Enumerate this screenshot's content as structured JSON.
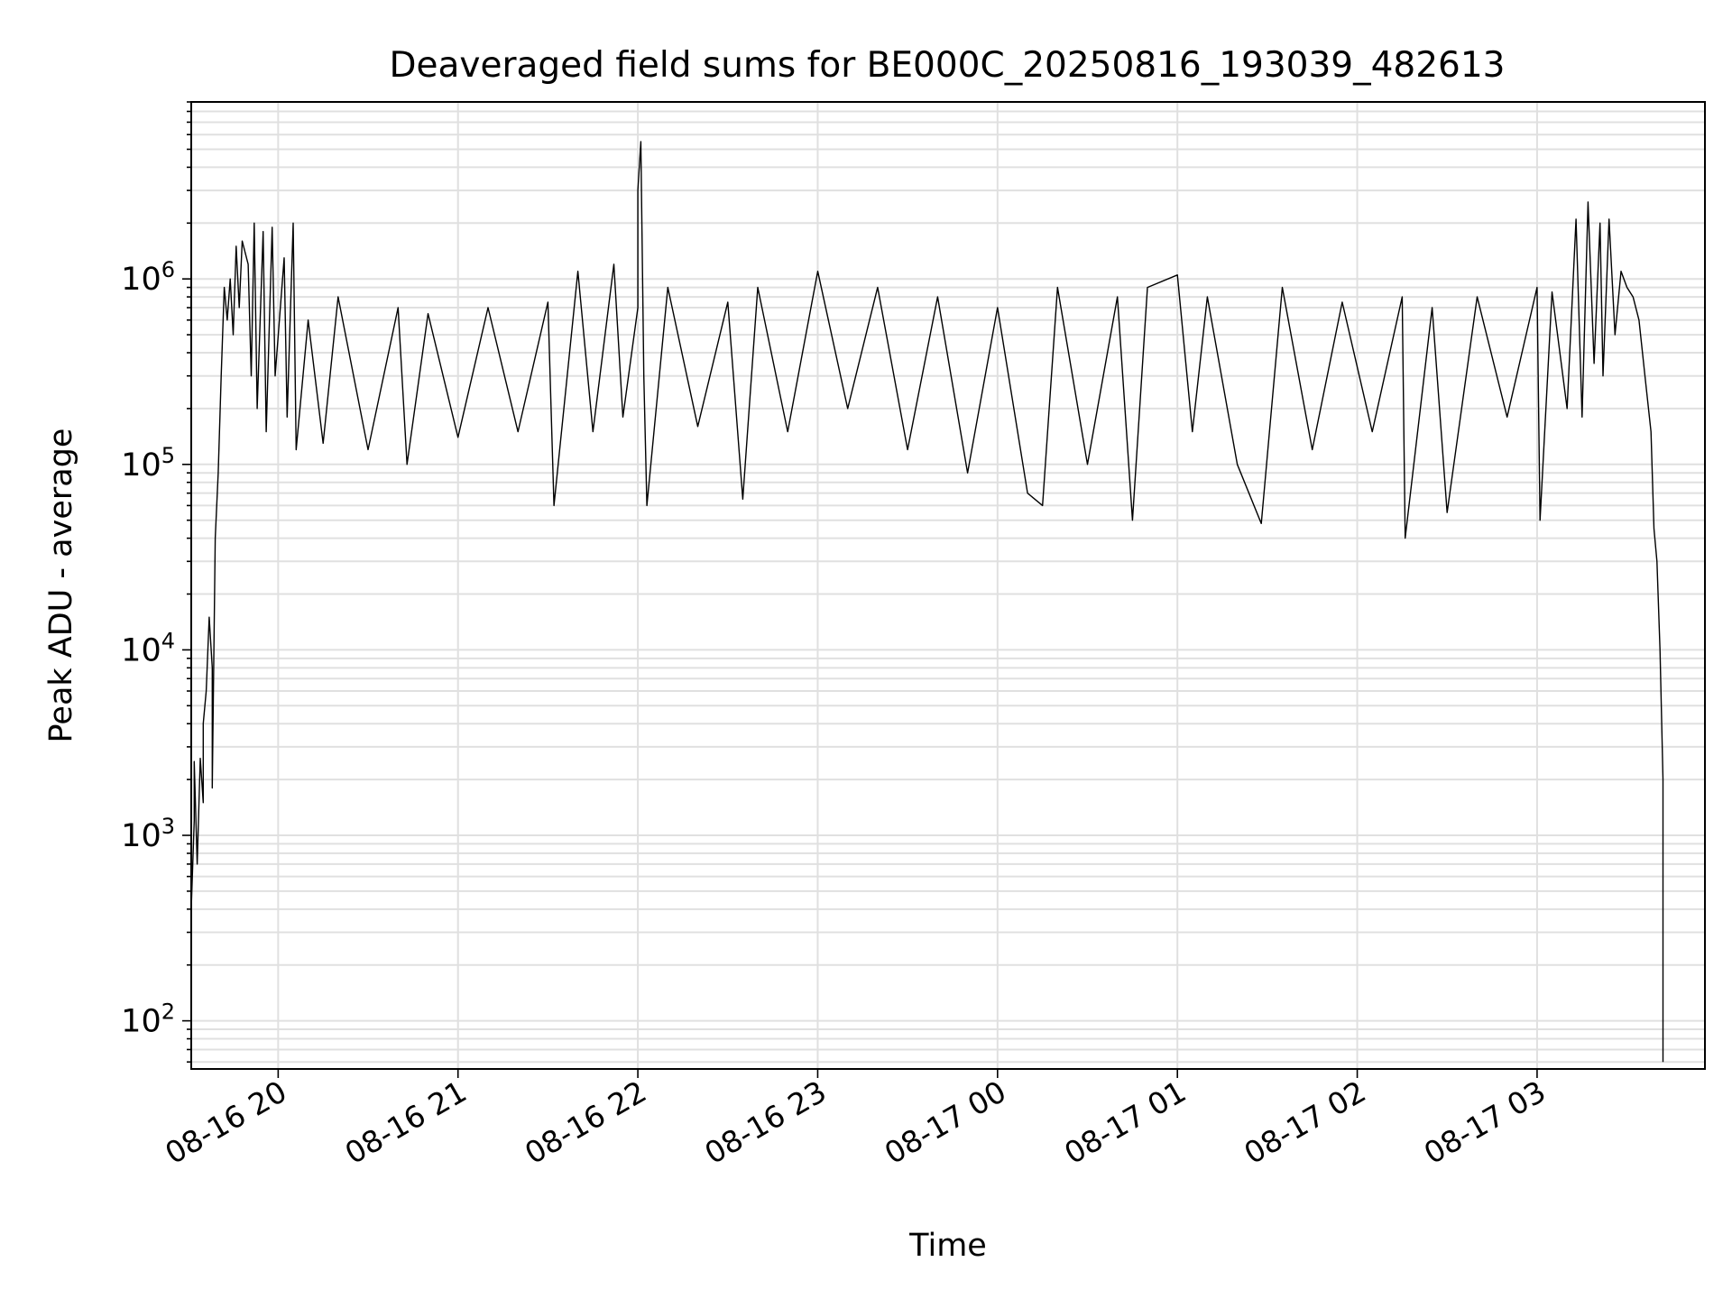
{
  "chart_data": {
    "type": "line",
    "title": "Deaveraged field sums for BE000C_20250816_193039_482613",
    "xlabel": "Time",
    "ylabel": "Peak ADU - average",
    "yscale": "log",
    "grid": true,
    "line_color": "#000000",
    "grid_color": "#e0e0e0",
    "xlim": [
      "2025-08-16 19:31",
      "2025-08-17 03:56"
    ],
    "ylim": [
      55,
      9000000
    ],
    "xticks": [
      {
        "t": "2025-08-16 20:00",
        "label": "08-16 20"
      },
      {
        "t": "2025-08-16 21:00",
        "label": "08-16 21"
      },
      {
        "t": "2025-08-16 22:00",
        "label": "08-16 22"
      },
      {
        "t": "2025-08-16 23:00",
        "label": "08-16 23"
      },
      {
        "t": "2025-08-17 00:00",
        "label": "08-17 00"
      },
      {
        "t": "2025-08-17 01:00",
        "label": "08-17 01"
      },
      {
        "t": "2025-08-17 02:00",
        "label": "08-17 02"
      },
      {
        "t": "2025-08-17 03:00",
        "label": "08-17 03"
      }
    ],
    "yticks": [
      {
        "value": 100,
        "base": "10",
        "exp": "2"
      },
      {
        "value": 1000,
        "base": "10",
        "exp": "3"
      },
      {
        "value": 10000,
        "base": "10",
        "exp": "4"
      },
      {
        "value": 100000,
        "base": "10",
        "exp": "5"
      },
      {
        "value": 1000000,
        "base": "10",
        "exp": "6"
      }
    ],
    "series": [
      {
        "points": [
          [
            "2025-08-16 19:31",
            60
          ],
          [
            "2025-08-16 19:31",
            400
          ],
          [
            "2025-08-16 19:32",
            1200
          ],
          [
            "2025-08-16 19:32",
            2500
          ],
          [
            "2025-08-16 19:33",
            700
          ],
          [
            "2025-08-16 19:34",
            2600
          ],
          [
            "2025-08-16 19:35",
            1500
          ],
          [
            "2025-08-16 19:35",
            4000
          ],
          [
            "2025-08-16 19:36",
            6000
          ],
          [
            "2025-08-16 19:37",
            15000
          ],
          [
            "2025-08-16 19:38",
            8000
          ],
          [
            "2025-08-16 19:38",
            1800
          ],
          [
            "2025-08-16 19:39",
            40000
          ],
          [
            "2025-08-16 19:40",
            90000
          ],
          [
            "2025-08-16 19:41",
            300000
          ],
          [
            "2025-08-16 19:42",
            900000
          ],
          [
            "2025-08-16 19:43",
            600000
          ],
          [
            "2025-08-16 19:44",
            1000000
          ],
          [
            "2025-08-16 19:45",
            500000
          ],
          [
            "2025-08-16 19:46",
            1500000
          ],
          [
            "2025-08-16 19:47",
            700000
          ],
          [
            "2025-08-16 19:48",
            1600000
          ],
          [
            "2025-08-16 19:50",
            1200000
          ],
          [
            "2025-08-16 19:51",
            300000
          ],
          [
            "2025-08-16 19:52",
            2000000
          ],
          [
            "2025-08-16 19:53",
            200000
          ],
          [
            "2025-08-16 19:55",
            1800000
          ],
          [
            "2025-08-16 19:56",
            150000
          ],
          [
            "2025-08-16 19:58",
            1900000
          ],
          [
            "2025-08-16 19:59",
            300000
          ],
          [
            "2025-08-16 20:02",
            1300000
          ],
          [
            "2025-08-16 20:03",
            180000
          ],
          [
            "2025-08-16 20:05",
            2000000
          ],
          [
            "2025-08-16 20:06",
            120000
          ],
          [
            "2025-08-16 20:10",
            600000
          ],
          [
            "2025-08-16 20:15",
            130000
          ],
          [
            "2025-08-16 20:20",
            800000
          ],
          [
            "2025-08-16 20:30",
            120000
          ],
          [
            "2025-08-16 20:40",
            700000
          ],
          [
            "2025-08-16 20:43",
            100000
          ],
          [
            "2025-08-16 20:50",
            650000
          ],
          [
            "2025-08-16 21:00",
            140000
          ],
          [
            "2025-08-16 21:10",
            700000
          ],
          [
            "2025-08-16 21:20",
            150000
          ],
          [
            "2025-08-16 21:30",
            750000
          ],
          [
            "2025-08-16 21:32",
            60000
          ],
          [
            "2025-08-16 21:40",
            1100000
          ],
          [
            "2025-08-16 21:45",
            150000
          ],
          [
            "2025-08-16 21:52",
            1200000
          ],
          [
            "2025-08-16 21:55",
            180000
          ],
          [
            "2025-08-16 22:00",
            700000
          ],
          [
            "2025-08-16 22:00",
            3000000
          ],
          [
            "2025-08-16 22:01",
            5500000
          ],
          [
            "2025-08-16 22:02",
            300000
          ],
          [
            "2025-08-16 22:03",
            60000
          ],
          [
            "2025-08-16 22:10",
            900000
          ],
          [
            "2025-08-16 22:20",
            160000
          ],
          [
            "2025-08-16 22:30",
            750000
          ],
          [
            "2025-08-16 22:35",
            65000
          ],
          [
            "2025-08-16 22:40",
            900000
          ],
          [
            "2025-08-16 22:50",
            150000
          ],
          [
            "2025-08-16 23:00",
            1100000
          ],
          [
            "2025-08-16 23:10",
            200000
          ],
          [
            "2025-08-16 23:20",
            900000
          ],
          [
            "2025-08-16 23:30",
            120000
          ],
          [
            "2025-08-16 23:40",
            800000
          ],
          [
            "2025-08-16 23:50",
            90000
          ],
          [
            "2025-08-17 00:00",
            700000
          ],
          [
            "2025-08-17 00:10",
            70000
          ],
          [
            "2025-08-17 00:15",
            60000
          ],
          [
            "2025-08-17 00:20",
            900000
          ],
          [
            "2025-08-17 00:30",
            100000
          ],
          [
            "2025-08-17 00:40",
            800000
          ],
          [
            "2025-08-17 00:45",
            50000
          ],
          [
            "2025-08-17 00:50",
            900000
          ],
          [
            "2025-08-17 01:00",
            1050000
          ],
          [
            "2025-08-17 01:05",
            150000
          ],
          [
            "2025-08-17 01:10",
            800000
          ],
          [
            "2025-08-17 01:20",
            100000
          ],
          [
            "2025-08-17 01:28",
            48000
          ],
          [
            "2025-08-17 01:35",
            900000
          ],
          [
            "2025-08-17 01:45",
            120000
          ],
          [
            "2025-08-17 01:55",
            750000
          ],
          [
            "2025-08-17 02:05",
            150000
          ],
          [
            "2025-08-17 02:15",
            800000
          ],
          [
            "2025-08-17 02:16",
            40000
          ],
          [
            "2025-08-17 02:25",
            700000
          ],
          [
            "2025-08-17 02:30",
            55000
          ],
          [
            "2025-08-17 02:40",
            800000
          ],
          [
            "2025-08-17 02:50",
            180000
          ],
          [
            "2025-08-17 03:00",
            900000
          ],
          [
            "2025-08-17 03:01",
            50000
          ],
          [
            "2025-08-17 03:05",
            850000
          ],
          [
            "2025-08-17 03:10",
            200000
          ],
          [
            "2025-08-17 03:13",
            2100000
          ],
          [
            "2025-08-17 03:15",
            180000
          ],
          [
            "2025-08-17 03:17",
            2600000
          ],
          [
            "2025-08-17 03:19",
            350000
          ],
          [
            "2025-08-17 03:21",
            2000000
          ],
          [
            "2025-08-17 03:22",
            300000
          ],
          [
            "2025-08-17 03:24",
            2100000
          ],
          [
            "2025-08-17 03:26",
            500000
          ],
          [
            "2025-08-17 03:28",
            1100000
          ],
          [
            "2025-08-17 03:30",
            900000
          ],
          [
            "2025-08-17 03:32",
            800000
          ],
          [
            "2025-08-17 03:34",
            600000
          ],
          [
            "2025-08-17 03:36",
            300000
          ],
          [
            "2025-08-17 03:38",
            150000
          ],
          [
            "2025-08-17 03:39",
            45000
          ],
          [
            "2025-08-17 03:40",
            30000
          ],
          [
            "2025-08-17 03:41",
            10000
          ],
          [
            "2025-08-17 03:42",
            2000
          ],
          [
            "2025-08-17 03:42",
            60
          ]
        ]
      }
    ]
  }
}
